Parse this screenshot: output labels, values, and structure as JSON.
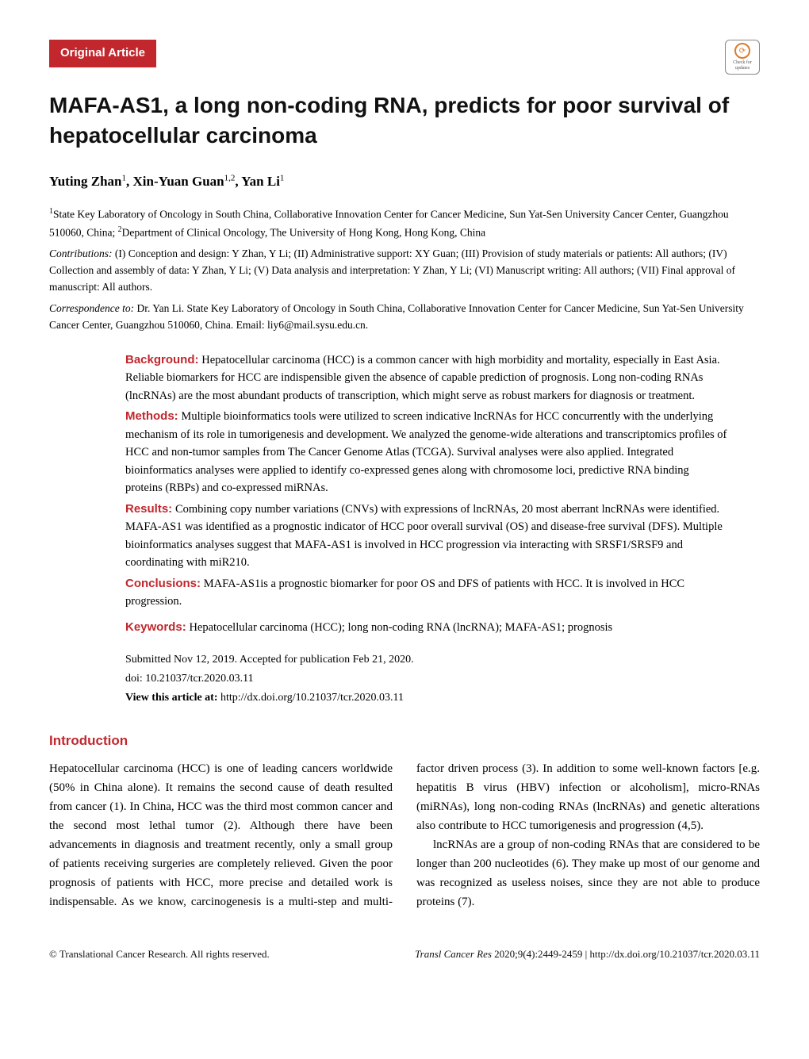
{
  "badge": "Original Article",
  "checkUpdates": "Check for updates",
  "title": "MAFA-AS1, a long non-coding RNA, predicts for poor survival of hepatocellular carcinoma",
  "authors_html": "Yuting Zhan<sup>1</sup>, Xin-Yuan Guan<sup>1,2</sup>, Yan Li<sup>1</sup>",
  "affiliations_html": "<sup>1</sup>State Key Laboratory of Oncology in South China, Collaborative Innovation Center for Cancer Medicine, Sun Yat-Sen University Cancer Center, Guangzhou 510060, China; <sup>2</sup>Department of Clinical Oncology, The University of Hong Kong, Hong Kong, China",
  "contributions_html": "<i>Contributions:</i> (I) Conception and design: Y Zhan, Y Li; (II) Administrative support: XY Guan; (III) Provision of study materials or patients: All authors; (IV) Collection and assembly of data: Y Zhan, Y Li; (V) Data analysis and interpretation: Y Zhan, Y Li; (VI) Manuscript writing: All authors; (VII) Final approval of manuscript: All authors.",
  "correspondence_html": "<i>Correspondence to:</i> Dr. Yan Li. State Key Laboratory of Oncology in South China, Collaborative Innovation Center for Cancer Medicine, Sun Yat-Sen University Cancer Center, Guangzhou 510060, China. Email: liy6@mail.sysu.edu.cn.",
  "abstract": {
    "background": {
      "label": "Background:",
      "text": "Hepatocellular carcinoma (HCC) is a common cancer with high morbidity and mortality, especially in East Asia. Reliable biomarkers for HCC are indispensible given the absence of capable prediction of prognosis. Long non-coding RNAs (lncRNAs) are the most abundant products of transcription, which might serve as robust markers for diagnosis or treatment."
    },
    "methods": {
      "label": "Methods:",
      "text": "Multiple bioinformatics tools were utilized to screen indicative lncRNAs for HCC concurrently with the underlying mechanism of its role in tumorigenesis and development. We analyzed the genome-wide alterations and transcriptomics profiles of HCC and non-tumor samples from The Cancer Genome Atlas (TCGA). Survival analyses were also applied. Integrated bioinformatics analyses were applied to identify co-expressed genes along with chromosome loci, predictive RNA binding proteins (RBPs) and co-expressed miRNAs."
    },
    "results": {
      "label": "Results:",
      "text": "Combining copy number variations (CNVs) with expressions of lncRNAs, 20 most aberrant lncRNAs were identified. MAFA-AS1 was identified as a prognostic indicator of HCC poor overall survival (OS) and disease-free survival (DFS). Multiple bioinformatics analyses suggest that MAFA-AS1 is involved in HCC progression via interacting with SRSF1/SRSF9 and coordinating with miR210."
    },
    "conclusions": {
      "label": "Conclusions:",
      "text": "MAFA-AS1is a prognostic biomarker for poor OS and DFS of patients with HCC. It is involved in HCC progression."
    },
    "keywords": {
      "label": "Keywords:",
      "text": "Hepatocellular carcinoma (HCC); long non-coding RNA (lncRNA); MAFA-AS1; prognosis"
    }
  },
  "meta": {
    "submitted": "Submitted Nov 12, 2019. Accepted for publication Feb 21, 2020.",
    "doi": "doi: 10.21037/tcr.2020.03.11",
    "view_label": "View this article at:",
    "view_url": "http://dx.doi.org/10.21037/tcr.2020.03.11"
  },
  "section_head": "Introduction",
  "intro_p1": "Hepatocellular carcinoma (HCC) is one of leading cancers worldwide (50% in China alone). It remains the second cause of death resulted from cancer (1). In China, HCC was the third most common cancer and the second most lethal tumor (2). Although there have been advancements in diagnosis and treatment recently, only a small group of patients receiving surgeries are completely relieved. Given the poor prognosis of patients with HCC, more precise and detailed work is indispensable. As we know, carcinogenesis is a multi-step and multi-factor driven process (3). In addition to some well-known factors [e.g. hepatitis B virus (HBV) infection or alcoholism], micro-RNAs (miRNAs), long non-coding RNAs (lncRNAs) and genetic alterations also contribute to HCC tumorigenesis and progression (4,5).",
  "intro_p2": "lncRNAs are a group of non-coding RNAs that are considered to be longer than 200 nucleotides (6). They make up most of our genome and was recognized as useless noises, since they are not able to produce proteins (7).",
  "footer": {
    "left": "© Translational Cancer Research. All rights reserved.",
    "right_journal": "Transl Cancer Res",
    "right_rest": " 2020;9(4):2449-2459 | http://dx.doi.org/10.21037/tcr.2020.03.11"
  },
  "colors": {
    "accent": "#c1272d",
    "text": "#000000",
    "bg": "#ffffff"
  }
}
